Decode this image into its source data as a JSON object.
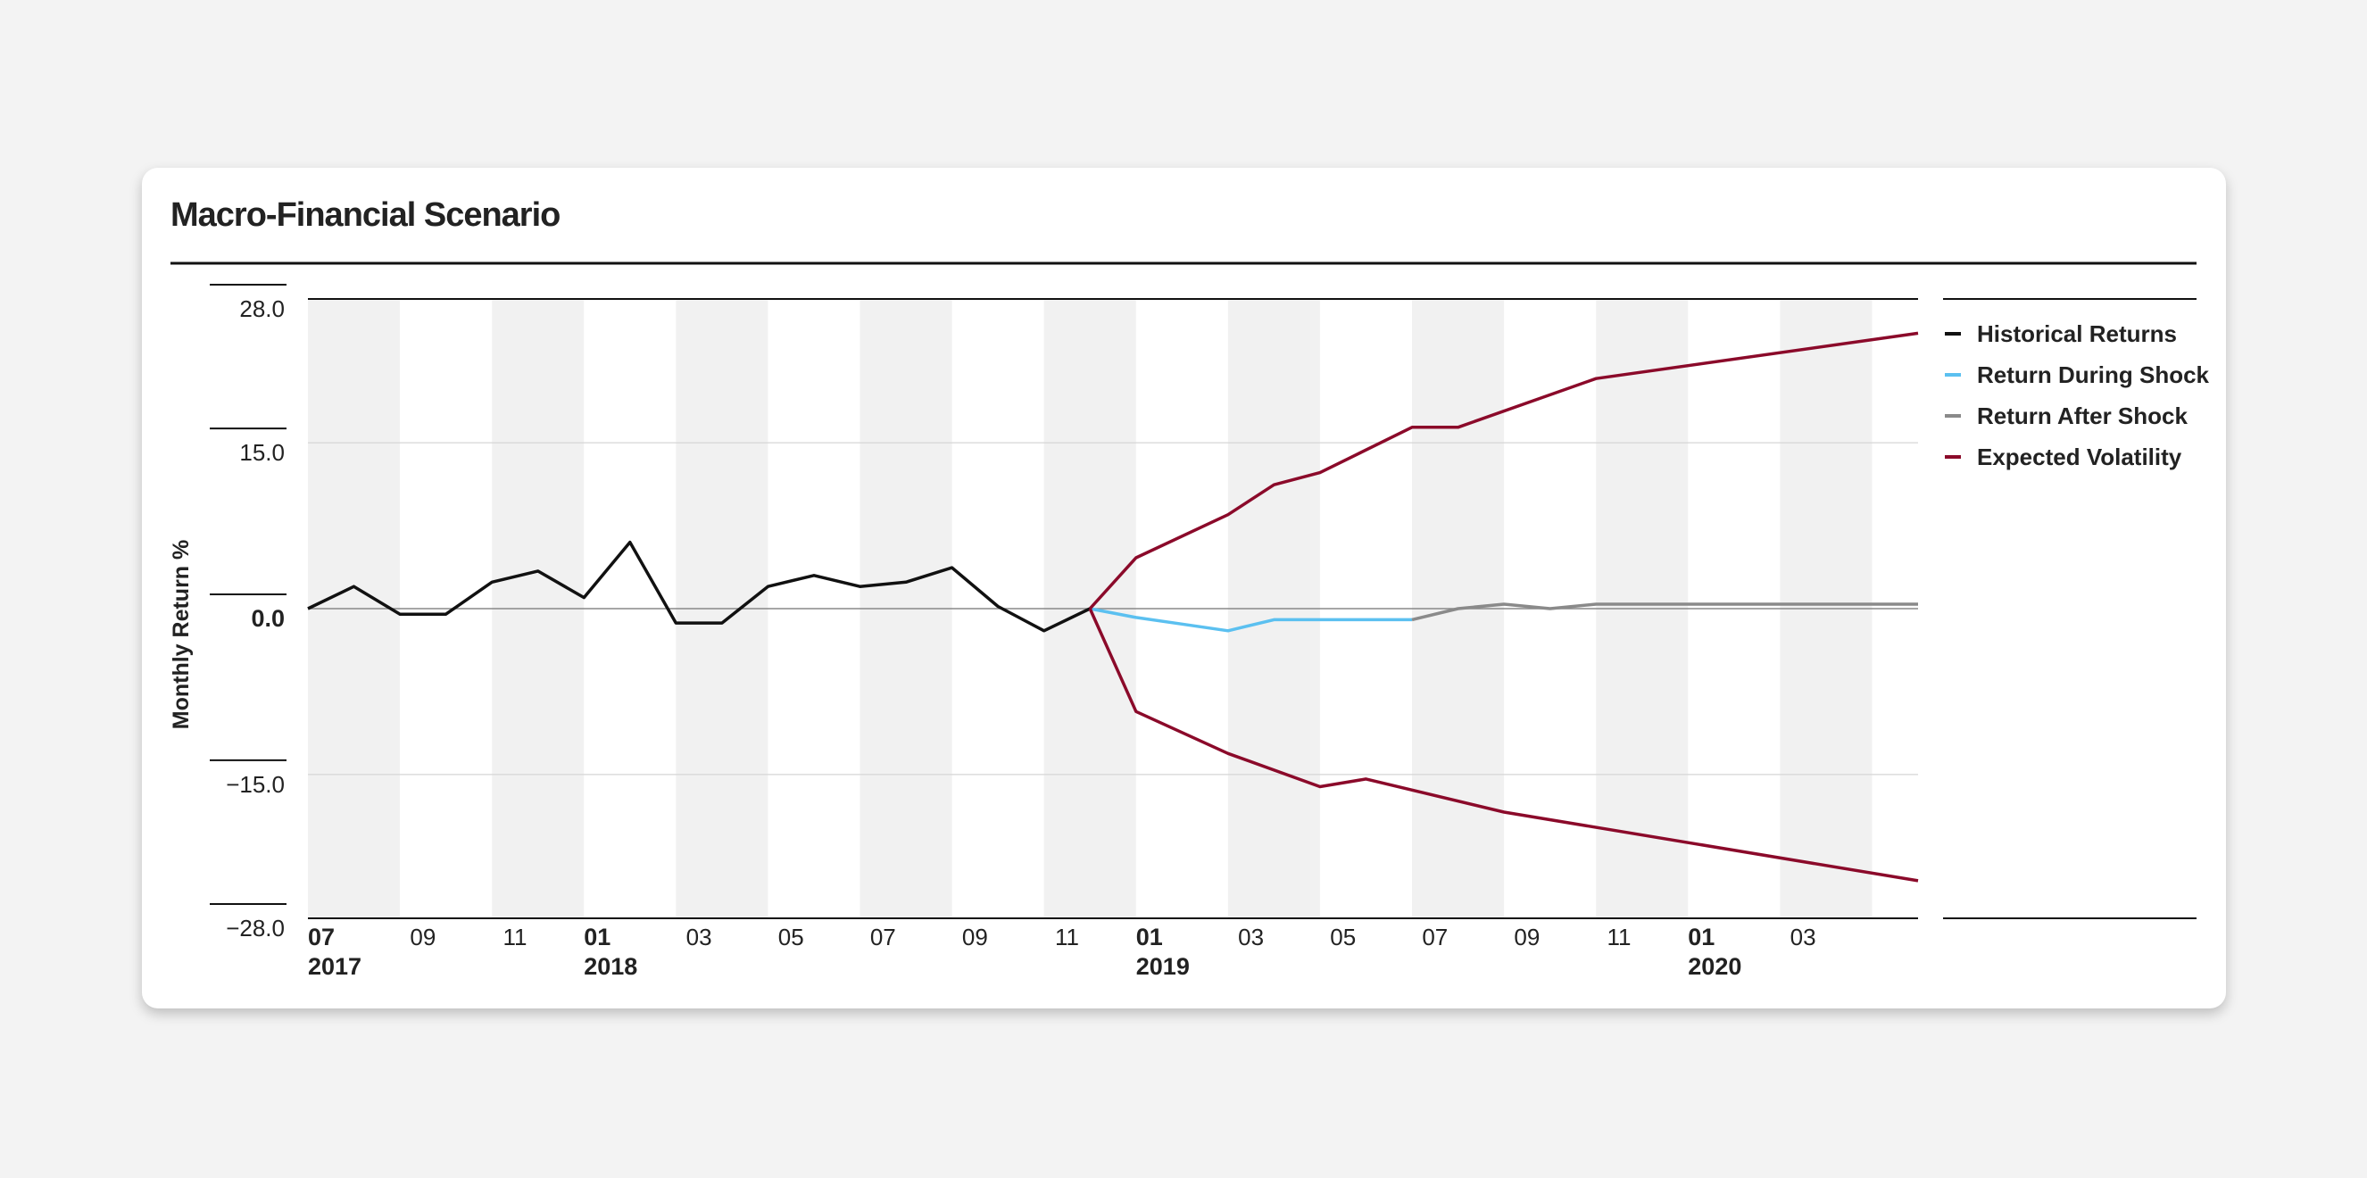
{
  "chart_data": {
    "type": "line",
    "title": "Macro-Financial Scenario",
    "ylabel": "Monthly Return %",
    "xlabel": "",
    "ylim": [
      -28.0,
      28.0
    ],
    "y_ticks": [
      {
        "value": 28.0,
        "label": "28.0"
      },
      {
        "value": 15.0,
        "label": "15.0"
      },
      {
        "value": 0.0,
        "label": "0.0",
        "bold": true
      },
      {
        "value": -15.0,
        "label": "−15.0"
      },
      {
        "value": -28.0,
        "label": "−28.0"
      }
    ],
    "x_range": [
      "2017-07",
      "2020-05"
    ],
    "x_ticks": [
      {
        "month": "2017-07",
        "label": "07",
        "year": "2017"
      },
      {
        "month": "2017-09",
        "label": "09"
      },
      {
        "month": "2017-11",
        "label": "11"
      },
      {
        "month": "2018-01",
        "label": "01",
        "year": "2018"
      },
      {
        "month": "2018-03",
        "label": "03"
      },
      {
        "month": "2018-05",
        "label": "05"
      },
      {
        "month": "2018-07",
        "label": "07"
      },
      {
        "month": "2018-09",
        "label": "09"
      },
      {
        "month": "2018-11",
        "label": "11"
      },
      {
        "month": "2019-01",
        "label": "01",
        "year": "2019"
      },
      {
        "month": "2019-03",
        "label": "03"
      },
      {
        "month": "2019-05",
        "label": "05"
      },
      {
        "month": "2019-07",
        "label": "07"
      },
      {
        "month": "2019-09",
        "label": "09"
      },
      {
        "month": "2019-11",
        "label": "11"
      },
      {
        "month": "2020-01",
        "label": "01",
        "year": "2020"
      },
      {
        "month": "2020-03",
        "label": "03"
      }
    ],
    "grid": true,
    "legend_position": "right",
    "series": [
      {
        "name": "Historical Returns",
        "color": "#111111",
        "points": [
          [
            "2017-07",
            0.0
          ],
          [
            "2017-08",
            2.0
          ],
          [
            "2017-09",
            -0.5
          ],
          [
            "2017-10",
            -0.5
          ],
          [
            "2017-11",
            2.4
          ],
          [
            "2017-12",
            3.4
          ],
          [
            "2018-01",
            1.0
          ],
          [
            "2018-02",
            6.0
          ],
          [
            "2018-03",
            -1.3
          ],
          [
            "2018-04",
            -1.3
          ],
          [
            "2018-05",
            2.0
          ],
          [
            "2018-06",
            3.0
          ],
          [
            "2018-07",
            2.0
          ],
          [
            "2018-08",
            2.4
          ],
          [
            "2018-09",
            3.7
          ],
          [
            "2018-10",
            0.2
          ],
          [
            "2018-11",
            -2.0
          ],
          [
            "2018-12",
            0.0
          ]
        ]
      },
      {
        "name": "Return During Shock",
        "color": "#5bc0f0",
        "points": [
          [
            "2018-12",
            0.0
          ],
          [
            "2019-01",
            -0.8
          ],
          [
            "2019-02",
            -1.4
          ],
          [
            "2019-03",
            -2.0
          ],
          [
            "2019-04",
            -1.0
          ],
          [
            "2019-05",
            -1.0
          ],
          [
            "2019-06",
            -1.0
          ],
          [
            "2019-07",
            -1.0
          ]
        ]
      },
      {
        "name": "Return After Shock",
        "color": "#8a8a8a",
        "points": [
          [
            "2019-07",
            -1.0
          ],
          [
            "2019-08",
            0.0
          ],
          [
            "2019-09",
            0.4
          ],
          [
            "2019-10",
            0.0
          ],
          [
            "2019-11",
            0.4
          ],
          [
            "2019-12",
            0.4
          ],
          [
            "2020-01",
            0.4
          ],
          [
            "2020-02",
            0.4
          ],
          [
            "2020-03",
            0.4
          ],
          [
            "2020-04",
            0.4
          ],
          [
            "2020-05",
            0.4
          ]
        ]
      },
      {
        "name": "Expected Volatility",
        "color": "#8b0a2a",
        "points": [
          [
            "2018-12",
            0.0
          ],
          [
            "2019-01",
            4.6
          ],
          [
            "2019-03",
            8.5
          ],
          [
            "2019-04",
            11.2
          ],
          [
            "2019-05",
            12.3
          ],
          [
            "2019-07",
            16.4
          ],
          [
            "2019-08",
            16.4
          ],
          [
            "2019-11",
            20.8
          ],
          [
            "2020-05",
            24.9
          ]
        ],
        "lower_points": [
          [
            "2018-12",
            0.0
          ],
          [
            "2019-01",
            -9.3
          ],
          [
            "2019-03",
            -13.1
          ],
          [
            "2019-05",
            -16.1
          ],
          [
            "2019-06",
            -15.4
          ],
          [
            "2019-09",
            -18.4
          ],
          [
            "2020-05",
            -24.6
          ]
        ]
      }
    ]
  }
}
